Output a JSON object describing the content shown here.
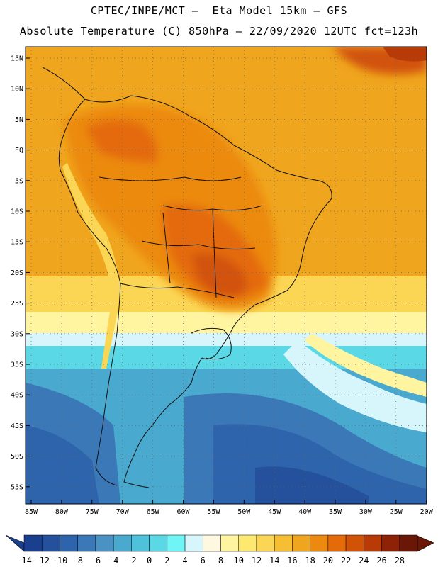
{
  "title": {
    "line1": "CPTEC/INPE/MCT —  Eta Model 15km — GFS",
    "line2": "Absolute Temperature (C) 850hPa — 22/09/2020 12UTC fct=123h"
  },
  "map": {
    "lat_labels": [
      "15N",
      "10N",
      "5N",
      "EQ",
      "5S",
      "10S",
      "15S",
      "20S",
      "25S",
      "30S",
      "35S",
      "40S",
      "45S",
      "50S",
      "55S"
    ],
    "lon_labels": [
      "85W",
      "80W",
      "75W",
      "70W",
      "65W",
      "60W",
      "55W",
      "50W",
      "45W",
      "40W",
      "35W",
      "30W",
      "25W",
      "20W"
    ]
  },
  "colorbar": {
    "labels": [
      "-14",
      "-12",
      "-10",
      "-8",
      "-6",
      "-4",
      "-2",
      "0",
      "2",
      "4",
      "6",
      "8",
      "10",
      "12",
      "14",
      "16",
      "18",
      "20",
      "22",
      "24",
      "26",
      "28"
    ],
    "colors": [
      "#1b3f8f",
      "#24509c",
      "#2e64ab",
      "#3a78b8",
      "#4a91c4",
      "#4aa9cf",
      "#4fc1db",
      "#5bd8e6",
      "#6ff5f5",
      "#d7f6fb",
      "#fff8e0",
      "#fff5a0",
      "#fde870",
      "#fbd654",
      "#f5be33",
      "#f0a51e",
      "#ec8a10",
      "#e46b08",
      "#d25307",
      "#b83a06",
      "#8e2206",
      "#6a1708"
    ]
  }
}
